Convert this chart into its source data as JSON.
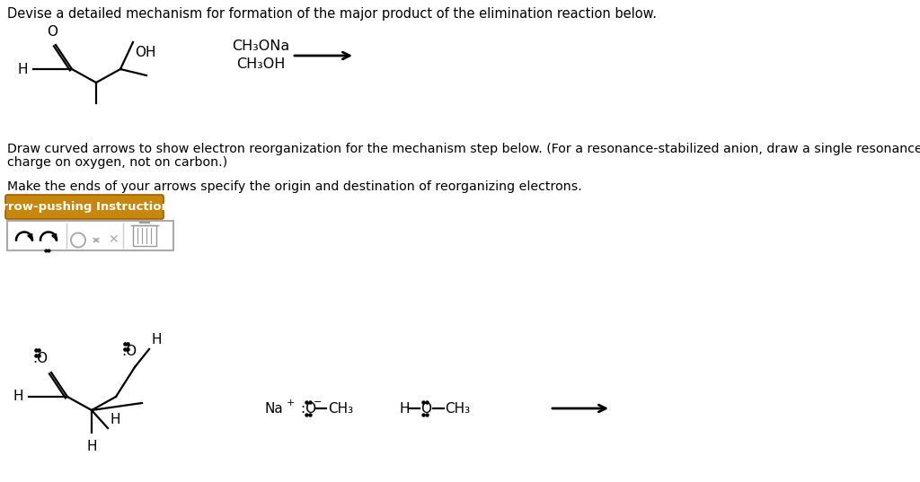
{
  "bg_color": "#ffffff",
  "title": "Devise a detailed mechanism for formation of the major product of the elimination reaction below.",
  "para1a": "Draw curved arrows to show electron reorganization for the mechanism step below. (For a resonance-stabilized anion, draw a single resonance form with the negative",
  "para1b": "charge on oxygen, not on carbon.)",
  "para2": "Make the ends of your arrows specify the origin and destination of reorganizing electrons.",
  "button_text": "Arrow-pushing Instructions",
  "button_color": "#c8860a",
  "button_border": "#a06000",
  "button_text_color": "#ffffff",
  "reagent1": "CH₃ONa",
  "reagent2": "CH₃OH",
  "text_color": "#000000",
  "lw": 1.6
}
